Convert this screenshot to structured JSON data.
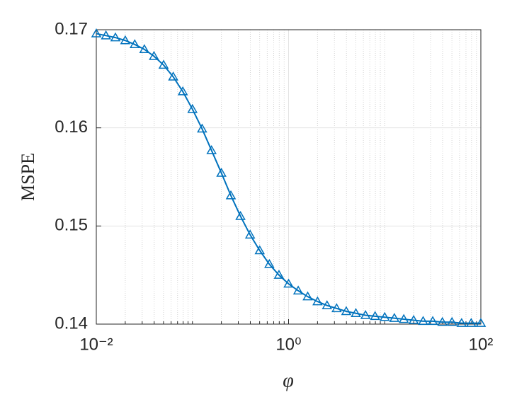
{
  "chart_data": {
    "type": "line",
    "xlabel": "φ",
    "ylabel": "MSPE",
    "xscale": "log",
    "grid": true,
    "minor_grid": true,
    "x": [
      0.01,
      0.0126,
      0.0158,
      0.02,
      0.0251,
      0.0316,
      0.0398,
      0.0501,
      0.0631,
      0.0794,
      0.1,
      0.126,
      0.158,
      0.2,
      0.251,
      0.316,
      0.398,
      0.501,
      0.631,
      0.794,
      1,
      1.26,
      1.58,
      2,
      2.51,
      3.16,
      3.98,
      5.01,
      6.31,
      7.94,
      10,
      12.6,
      15.8,
      20,
      25.1,
      31.6,
      39.8,
      50.1,
      63.1,
      79.4,
      100
    ],
    "series": [
      {
        "color": "#0072bd",
        "marker": "triangle",
        "values": [
          0.1696,
          0.1694,
          0.1692,
          0.1689,
          0.1685,
          0.168,
          0.1673,
          0.1664,
          0.1652,
          0.1637,
          0.1619,
          0.1599,
          0.1577,
          0.1554,
          0.1531,
          0.151,
          0.1491,
          0.1475,
          0.1461,
          0.145,
          0.1441,
          0.1434,
          0.1428,
          0.1423,
          0.1419,
          0.1416,
          0.1413,
          0.1411,
          0.1409,
          0.1408,
          0.1407,
          0.1406,
          0.1405,
          0.1404,
          0.1403,
          0.1403,
          0.1402,
          0.1402,
          0.1401,
          0.1401,
          0.1401
        ]
      }
    ],
    "xlim": [
      0.01,
      100
    ],
    "xticks": [
      {
        "value": 0.01,
        "label": "10⁻²"
      },
      {
        "value": 1,
        "label": "10⁰"
      },
      {
        "value": 100,
        "label": "10²"
      }
    ],
    "xminorticks": [
      0.02,
      0.03,
      0.04,
      0.05,
      0.06,
      0.07,
      0.08,
      0.09,
      0.1,
      0.2,
      0.3,
      0.4,
      0.5,
      0.6,
      0.7,
      0.8,
      0.9,
      2,
      3,
      4,
      5,
      6,
      7,
      8,
      9,
      10,
      20,
      30,
      40,
      50,
      60,
      70,
      80,
      90
    ],
    "ylim": [
      0.14,
      0.17
    ],
    "yticks": [
      0.14,
      0.15,
      0.16,
      0.17
    ]
  }
}
